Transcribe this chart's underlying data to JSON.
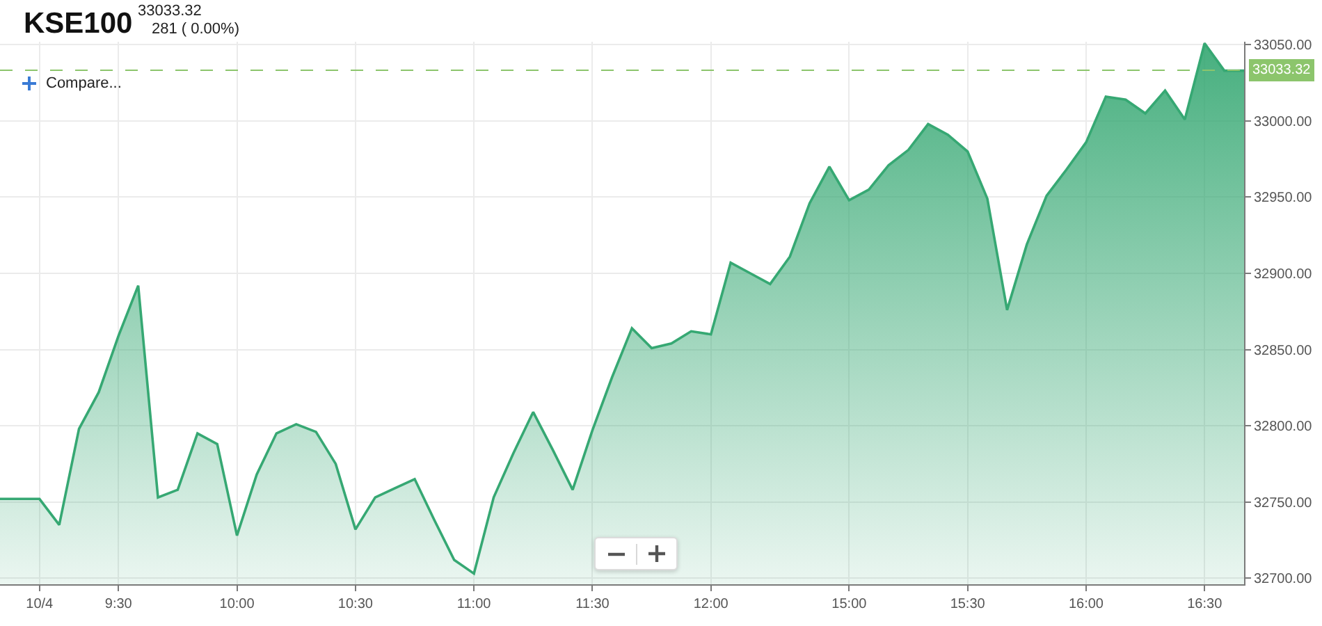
{
  "chart_data": {
    "type": "area",
    "title": "KSE100",
    "subtitle": "33033.32",
    "annotations": [
      "281 ( 0.00%)",
      "Compare..."
    ],
    "categories": [
      null,
      null,
      "10/4",
      null,
      null,
      null,
      "9:30",
      null,
      null,
      null,
      null,
      null,
      "10:00",
      null,
      null,
      null,
      null,
      null,
      "10:30",
      null,
      null,
      null,
      null,
      null,
      "11:00",
      null,
      null,
      null,
      null,
      null,
      "11:30",
      null,
      null,
      null,
      null,
      null,
      "12:00",
      null,
      null,
      null,
      null,
      null,
      null,
      "15:00",
      null,
      null,
      null,
      null,
      null,
      "15:30",
      null,
      null,
      null,
      null,
      null,
      "16:00",
      null,
      null,
      null,
      null,
      null,
      "16:30",
      null,
      null
    ],
    "values": [
      32752,
      32752,
      32752,
      32735,
      32798,
      32822,
      32859,
      32892,
      32753,
      32758,
      32795,
      32788,
      32728,
      32768,
      32795,
      32801,
      32796,
      32775,
      32732,
      32753,
      32759,
      32765,
      32738,
      32712,
      32703,
      32753,
      32782,
      32809,
      32784,
      32758,
      32797,
      32832,
      32864,
      32851,
      32854,
      32862,
      32860,
      32907,
      32900,
      32893,
      32911,
      32946,
      32970,
      32948,
      32955,
      32971,
      32981,
      32998,
      32991,
      32980,
      32949,
      32876,
      32919,
      32951,
      32968,
      32986,
      33016,
      33014,
      33005,
      33020,
      33001,
      33051,
      33033,
      33033
    ],
    "color": "#36a873",
    "ylim": [
      32696,
      33052
    ],
    "yticks": [
      {
        "value": 32700,
        "label": "32700.00"
      },
      {
        "value": 32750,
        "label": "32750.00"
      },
      {
        "value": 32800,
        "label": "32800.00"
      },
      {
        "value": 32850,
        "label": "32850.00"
      },
      {
        "value": 32900,
        "label": "32900.00"
      },
      {
        "value": 32950,
        "label": "32950.00"
      },
      {
        "value": 33000,
        "label": "33000.00"
      },
      {
        "value": 33050,
        "label": "33050.00"
      }
    ],
    "grid": true,
    "ref_lines": [
      {
        "axis": "y",
        "value": 33033.32,
        "label": "33033.32",
        "color": "#8cc56c",
        "line_style": "dashed"
      }
    ]
  }
}
